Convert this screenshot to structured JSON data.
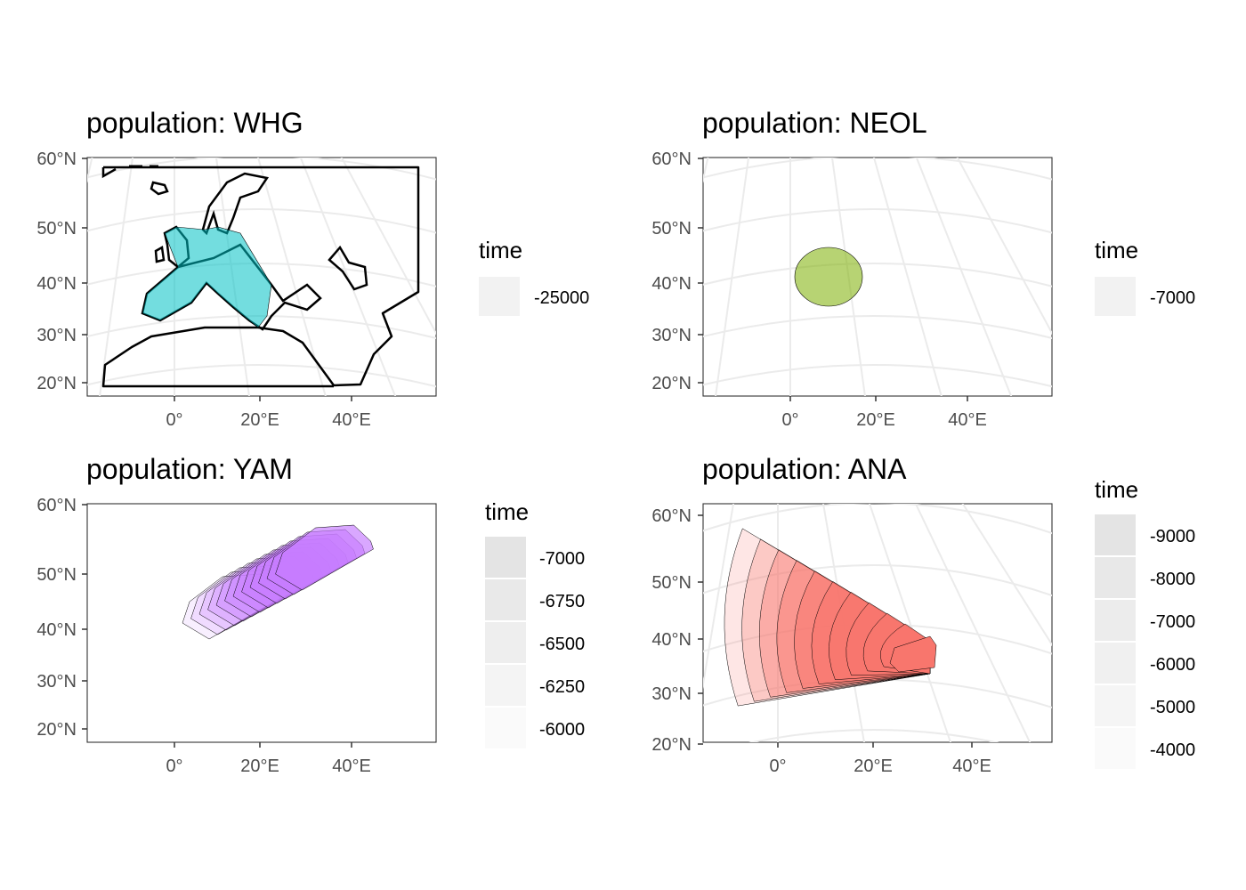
{
  "panels": [
    {
      "id": "whg",
      "title": "population: WHG",
      "fill": "#00C1C4",
      "y_labels": [
        "60°N",
        "50°N",
        "40°N",
        "30°N",
        "20°N"
      ],
      "x_labels": [
        "0°",
        "20°E",
        "40°E"
      ],
      "legend": {
        "title": "time",
        "labels": [
          "-25000"
        ]
      }
    },
    {
      "id": "neol",
      "title": "population: NEOL",
      "fill": "#7CAE00",
      "y_labels": [
        "60°N",
        "50°N",
        "40°N",
        "30°N",
        "20°N"
      ],
      "x_labels": [
        "0°",
        "20°E",
        "40°E"
      ],
      "legend": {
        "title": "time",
        "labels": [
          "-7000"
        ]
      }
    },
    {
      "id": "yam",
      "title": "population: YAM",
      "fill": "#C77CFF",
      "y_labels": [
        "60°N",
        "50°N",
        "40°N",
        "30°N",
        "20°N"
      ],
      "x_labels": [
        "0°",
        "20°E",
        "40°E"
      ],
      "legend": {
        "title": "time",
        "labels": [
          "-7000",
          "-6750",
          "-6500",
          "-6250",
          "-6000"
        ]
      }
    },
    {
      "id": "ana",
      "title": "population: ANA",
      "fill": "#F8766D",
      "y_labels": [
        "60°N",
        "50°N",
        "40°N",
        "30°N",
        "20°N"
      ],
      "x_labels": [
        "0°",
        "20°E",
        "40°E"
      ],
      "legend": {
        "title": "time",
        "labels": [
          "-9000",
          "-8000",
          "-7000",
          "-6000",
          "-5000",
          "-4000"
        ]
      }
    }
  ]
}
